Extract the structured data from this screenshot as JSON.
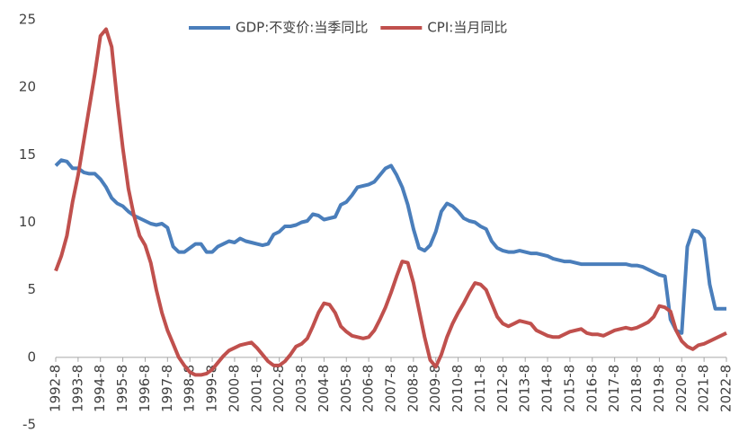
{
  "chart_data": {
    "type": "line",
    "categories": [
      "1992-8",
      null,
      null,
      null,
      "1993-8",
      null,
      null,
      null,
      "1994-8",
      null,
      null,
      null,
      "1995-8",
      null,
      null,
      null,
      "1996-8",
      null,
      null,
      null,
      "1997-8",
      null,
      null,
      null,
      "1998-8",
      null,
      null,
      null,
      "1999-8",
      null,
      null,
      null,
      "2000-8",
      null,
      null,
      null,
      "2001-8",
      null,
      null,
      null,
      "2002-8",
      null,
      null,
      null,
      "2003-8",
      null,
      null,
      null,
      "2004-8",
      null,
      null,
      null,
      "2005-8",
      null,
      null,
      null,
      "2006-8",
      null,
      null,
      null,
      "2007-8",
      null,
      null,
      null,
      "2008-8",
      null,
      null,
      null,
      "2009-8",
      null,
      null,
      null,
      "2010-8",
      null,
      null,
      null,
      "2011-8",
      null,
      null,
      null,
      "2012-8",
      null,
      null,
      null,
      "2013-8",
      null,
      null,
      null,
      "2014-8",
      null,
      null,
      null,
      "2015-8",
      null,
      null,
      null,
      "2016-8",
      null,
      null,
      null,
      "2017-8",
      null,
      null,
      null,
      "2018-8",
      null,
      null,
      null,
      "2019-8",
      null,
      null,
      null,
      "2020-8",
      null,
      null,
      null,
      "2021-8",
      null,
      null,
      null,
      "2022-8"
    ],
    "series": [
      {
        "name": "GDP:不变价:当季同比",
        "color": "#4a7ebb",
        "values": [
          14.2,
          14.6,
          14.5,
          14.0,
          14.0,
          13.7,
          13.6,
          13.6,
          13.2,
          12.6,
          11.8,
          11.4,
          11.2,
          10.8,
          10.5,
          10.3,
          10.1,
          9.9,
          9.8,
          9.9,
          9.6,
          8.2,
          7.8,
          7.8,
          8.1,
          8.4,
          8.4,
          7.8,
          7.8,
          8.2,
          8.4,
          8.6,
          8.5,
          8.8,
          8.6,
          8.5,
          8.4,
          8.3,
          8.4,
          9.1,
          9.3,
          9.7,
          9.7,
          9.8,
          10.0,
          10.1,
          10.6,
          10.5,
          10.2,
          10.3,
          10.4,
          11.3,
          11.5,
          12.0,
          12.6,
          12.7,
          12.8,
          13.0,
          13.5,
          14.0,
          14.2,
          13.5,
          12.6,
          11.3,
          9.5,
          8.1,
          7.9,
          8.3,
          9.3,
          10.8,
          11.4,
          11.2,
          10.8,
          10.3,
          10.1,
          10.0,
          9.7,
          9.5,
          8.6,
          8.1,
          7.9,
          7.8,
          7.8,
          7.9,
          7.8,
          7.7,
          7.7,
          7.6,
          7.5,
          7.3,
          7.2,
          7.1,
          7.1,
          7.0,
          6.9,
          6.9,
          6.9,
          6.9,
          6.9,
          6.9,
          6.9,
          6.9,
          6.9,
          6.8,
          6.8,
          6.7,
          6.5,
          6.3,
          6.1,
          6.0,
          2.8,
          2.0,
          1.8,
          8.2,
          9.4,
          9.3,
          8.8,
          5.4,
          3.6,
          3.6,
          3.6
        ]
      },
      {
        "name": "CPI:当月同比",
        "color": "#c0504d",
        "values": [
          6.4,
          7.5,
          9.0,
          11.5,
          13.5,
          16.0,
          18.5,
          21.0,
          23.8,
          24.3,
          23.0,
          19.0,
          15.5,
          12.5,
          10.5,
          9.0,
          8.3,
          7.0,
          5.0,
          3.3,
          2.0,
          1.0,
          0.0,
          -0.6,
          -1.1,
          -1.3,
          -1.3,
          -1.2,
          -0.9,
          -0.4,
          0.1,
          0.5,
          0.7,
          0.9,
          1.0,
          1.1,
          0.7,
          0.2,
          -0.3,
          -0.6,
          -0.6,
          -0.3,
          0.2,
          0.8,
          1.0,
          1.4,
          2.3,
          3.3,
          4.0,
          3.9,
          3.3,
          2.3,
          1.9,
          1.6,
          1.5,
          1.4,
          1.5,
          2.0,
          2.8,
          3.7,
          4.8,
          6.0,
          7.1,
          7.0,
          5.5,
          3.5,
          1.5,
          -0.2,
          -0.7,
          0.2,
          1.5,
          2.5,
          3.3,
          4.0,
          4.8,
          5.5,
          5.4,
          5.0,
          4.0,
          3.0,
          2.5,
          2.3,
          2.5,
          2.7,
          2.6,
          2.5,
          2.0,
          1.8,
          1.6,
          1.5,
          1.5,
          1.7,
          1.9,
          2.0,
          2.1,
          1.8,
          1.7,
          1.7,
          1.6,
          1.8,
          2.0,
          2.1,
          2.2,
          2.1,
          2.2,
          2.4,
          2.6,
          3.0,
          3.8,
          3.7,
          3.4,
          2.0,
          1.2,
          0.8,
          0.6,
          0.9,
          1.0,
          1.2,
          1.4,
          1.6,
          1.8
        ]
      }
    ],
    "ylim": [
      -5,
      25
    ],
    "yticks": [
      -5,
      0,
      5,
      10,
      15,
      20,
      25
    ],
    "grid": false,
    "legend": "top"
  }
}
